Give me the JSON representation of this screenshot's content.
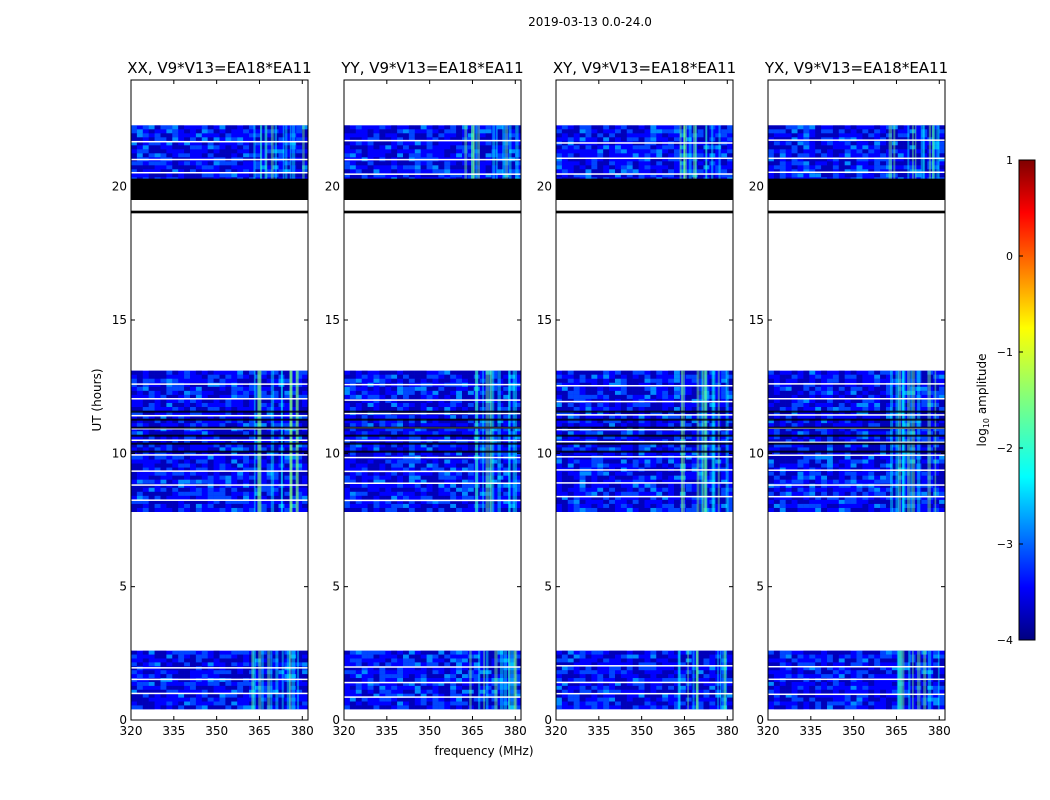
{
  "figure": {
    "suptitle": "2019-03-13 0.0-24.0"
  },
  "colors": {
    "background": "#ffffff",
    "axis": "#000000",
    "flagged": "#000000",
    "no_data": "#ffffff",
    "jet_stops": [
      "#00007f",
      "#0000ff",
      "#007fff",
      "#00ffff",
      "#7fff7f",
      "#ffff00",
      "#ff7f00",
      "#ff0000",
      "#7f0000"
    ]
  },
  "chart_data": [
    {
      "type": "heatmap",
      "title": "XX, V9*V13=EA18*EA11",
      "xlabel": "",
      "ylabel": "UT (hours)",
      "xlim": [
        320,
        382
      ],
      "ylim": [
        0,
        24
      ],
      "xticks": [
        "320",
        "335",
        "350",
        "365",
        "380"
      ],
      "yticks": [
        "0",
        "5",
        "10",
        "15",
        "20"
      ]
    },
    {
      "type": "heatmap",
      "title": "YY, V9*V13=EA18*EA11",
      "xlabel": "frequency (MHz)",
      "ylabel": "",
      "xlim": [
        320,
        382
      ],
      "ylim": [
        0,
        24
      ],
      "xticks": [
        "320",
        "335",
        "350",
        "365",
        "380"
      ],
      "yticks": [
        "0",
        "5",
        "10",
        "15",
        "20"
      ]
    },
    {
      "type": "heatmap",
      "title": "XY, V9*V13=EA18*EA11",
      "xlabel": "",
      "ylabel": "",
      "xlim": [
        320,
        382
      ],
      "ylim": [
        0,
        24
      ],
      "xticks": [
        "320",
        "335",
        "350",
        "365",
        "380"
      ],
      "yticks": [
        "0",
        "5",
        "10",
        "15",
        "20"
      ]
    },
    {
      "type": "heatmap",
      "title": "YX, V9*V13=EA18*EA11",
      "xlabel": "",
      "ylabel": "",
      "xlim": [
        320,
        382
      ],
      "ylim": [
        0,
        24
      ],
      "xticks": [
        "320",
        "335",
        "350",
        "365",
        "380"
      ],
      "yticks": [
        "0",
        "5",
        "10",
        "15",
        "20"
      ]
    }
  ],
  "data_blocks_ut_hours": [
    [
      0.4,
      2.6
    ],
    [
      7.8,
      13.1
    ],
    [
      19.9,
      22.3
    ]
  ],
  "flagged_bands_ut_hours": [
    [
      19.5,
      20.3
    ],
    [
      19.0,
      19.1
    ]
  ],
  "rfi_band_mhz": [
    362,
    380
  ],
  "colorbar": {
    "label_prefix": "log",
    "label_subscript": "10",
    "label_suffix": " amplitude",
    "range": [
      -4,
      1
    ],
    "ticks": [
      "1",
      "0",
      "−1",
      "−2",
      "−3",
      "−4"
    ]
  }
}
